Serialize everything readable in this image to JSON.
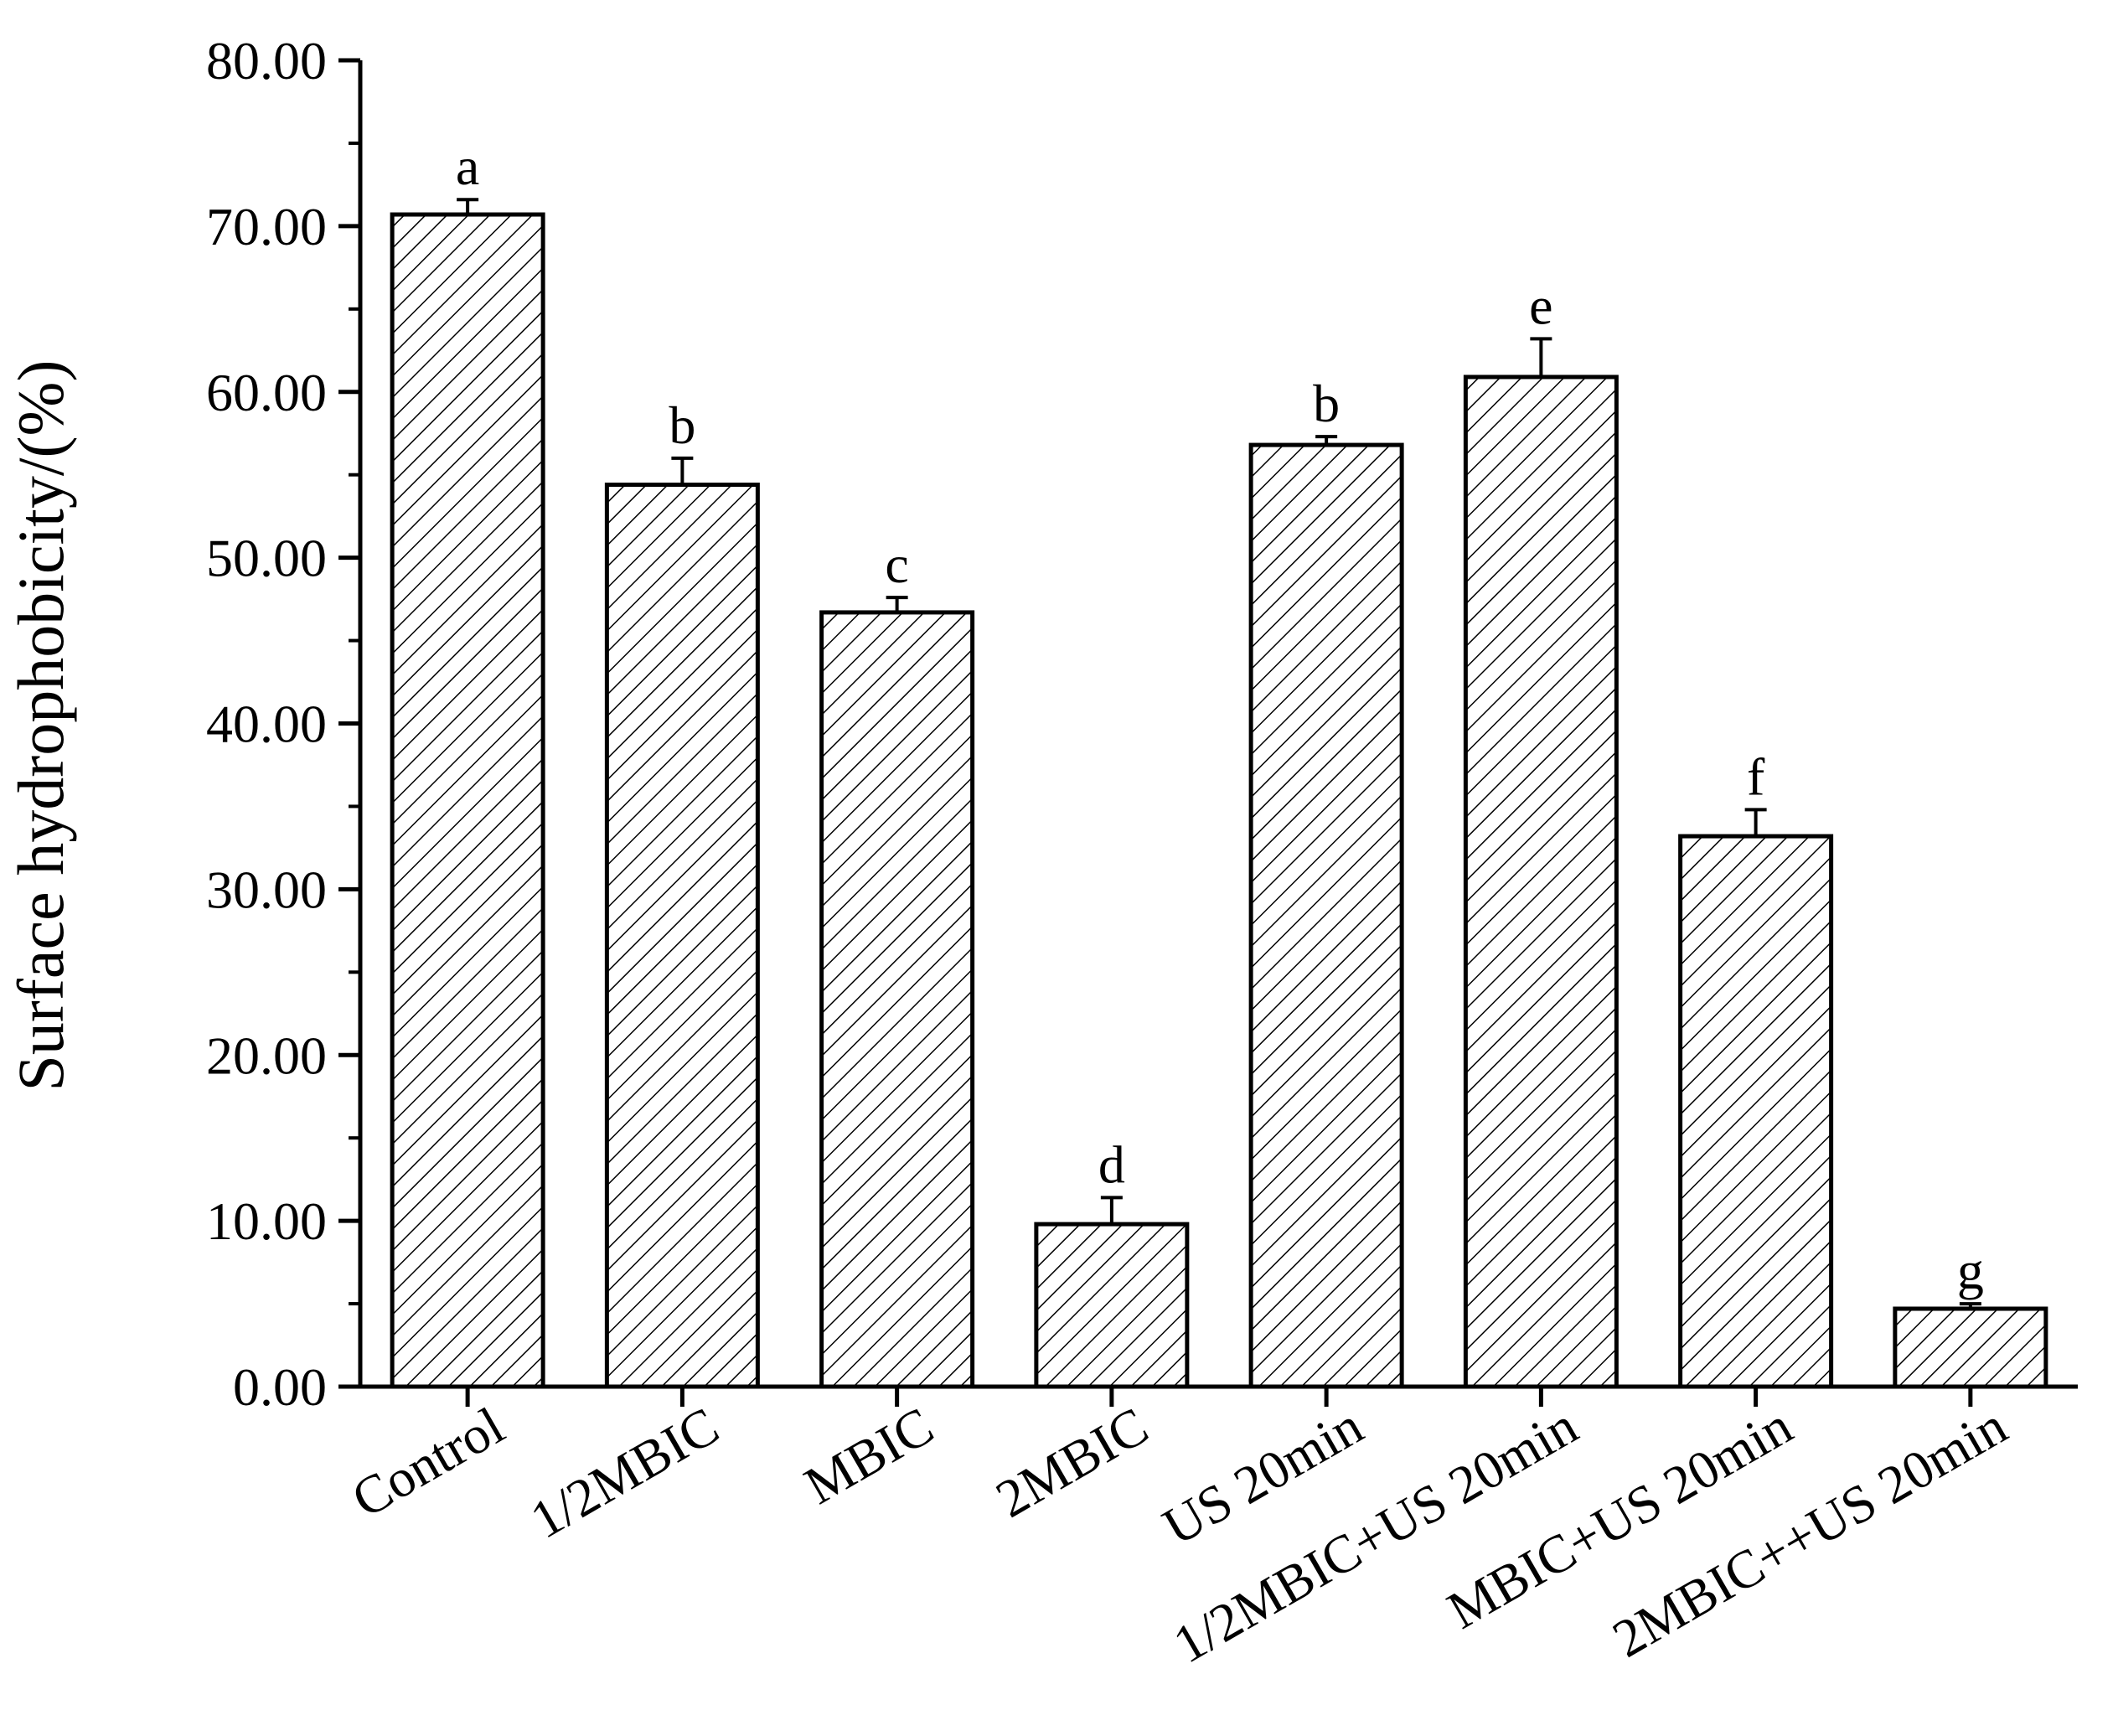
{
  "chart_data": {
    "type": "bar",
    "title": "",
    "xlabel": "",
    "ylabel": "Surface hydrophobicity/(%)",
    "ylim": [
      0,
      80
    ],
    "yticks": [
      "0.00",
      "10.00",
      "20.00",
      "30.00",
      "40.00",
      "50.00",
      "60.00",
      "70.00",
      "80.00"
    ],
    "categories": [
      "Control",
      "1/2MBIC",
      "MBIC",
      "2MBIC",
      "US 20min",
      "1/2MBIC+US 20min",
      "MBIC+US 20min",
      "2MBIC++US 20min"
    ],
    "values": [
      70.7,
      54.4,
      46.7,
      9.8,
      56.8,
      60.9,
      33.2,
      4.7
    ],
    "errors": [
      0.9,
      1.6,
      0.9,
      1.6,
      0.5,
      2.3,
      1.6,
      0.3
    ],
    "significance": [
      "a",
      "b",
      "c",
      "d",
      "b",
      "e",
      "f",
      "g"
    ],
    "fill": "hatched",
    "bar_color": "#000000",
    "grid": false,
    "legend": "none"
  }
}
